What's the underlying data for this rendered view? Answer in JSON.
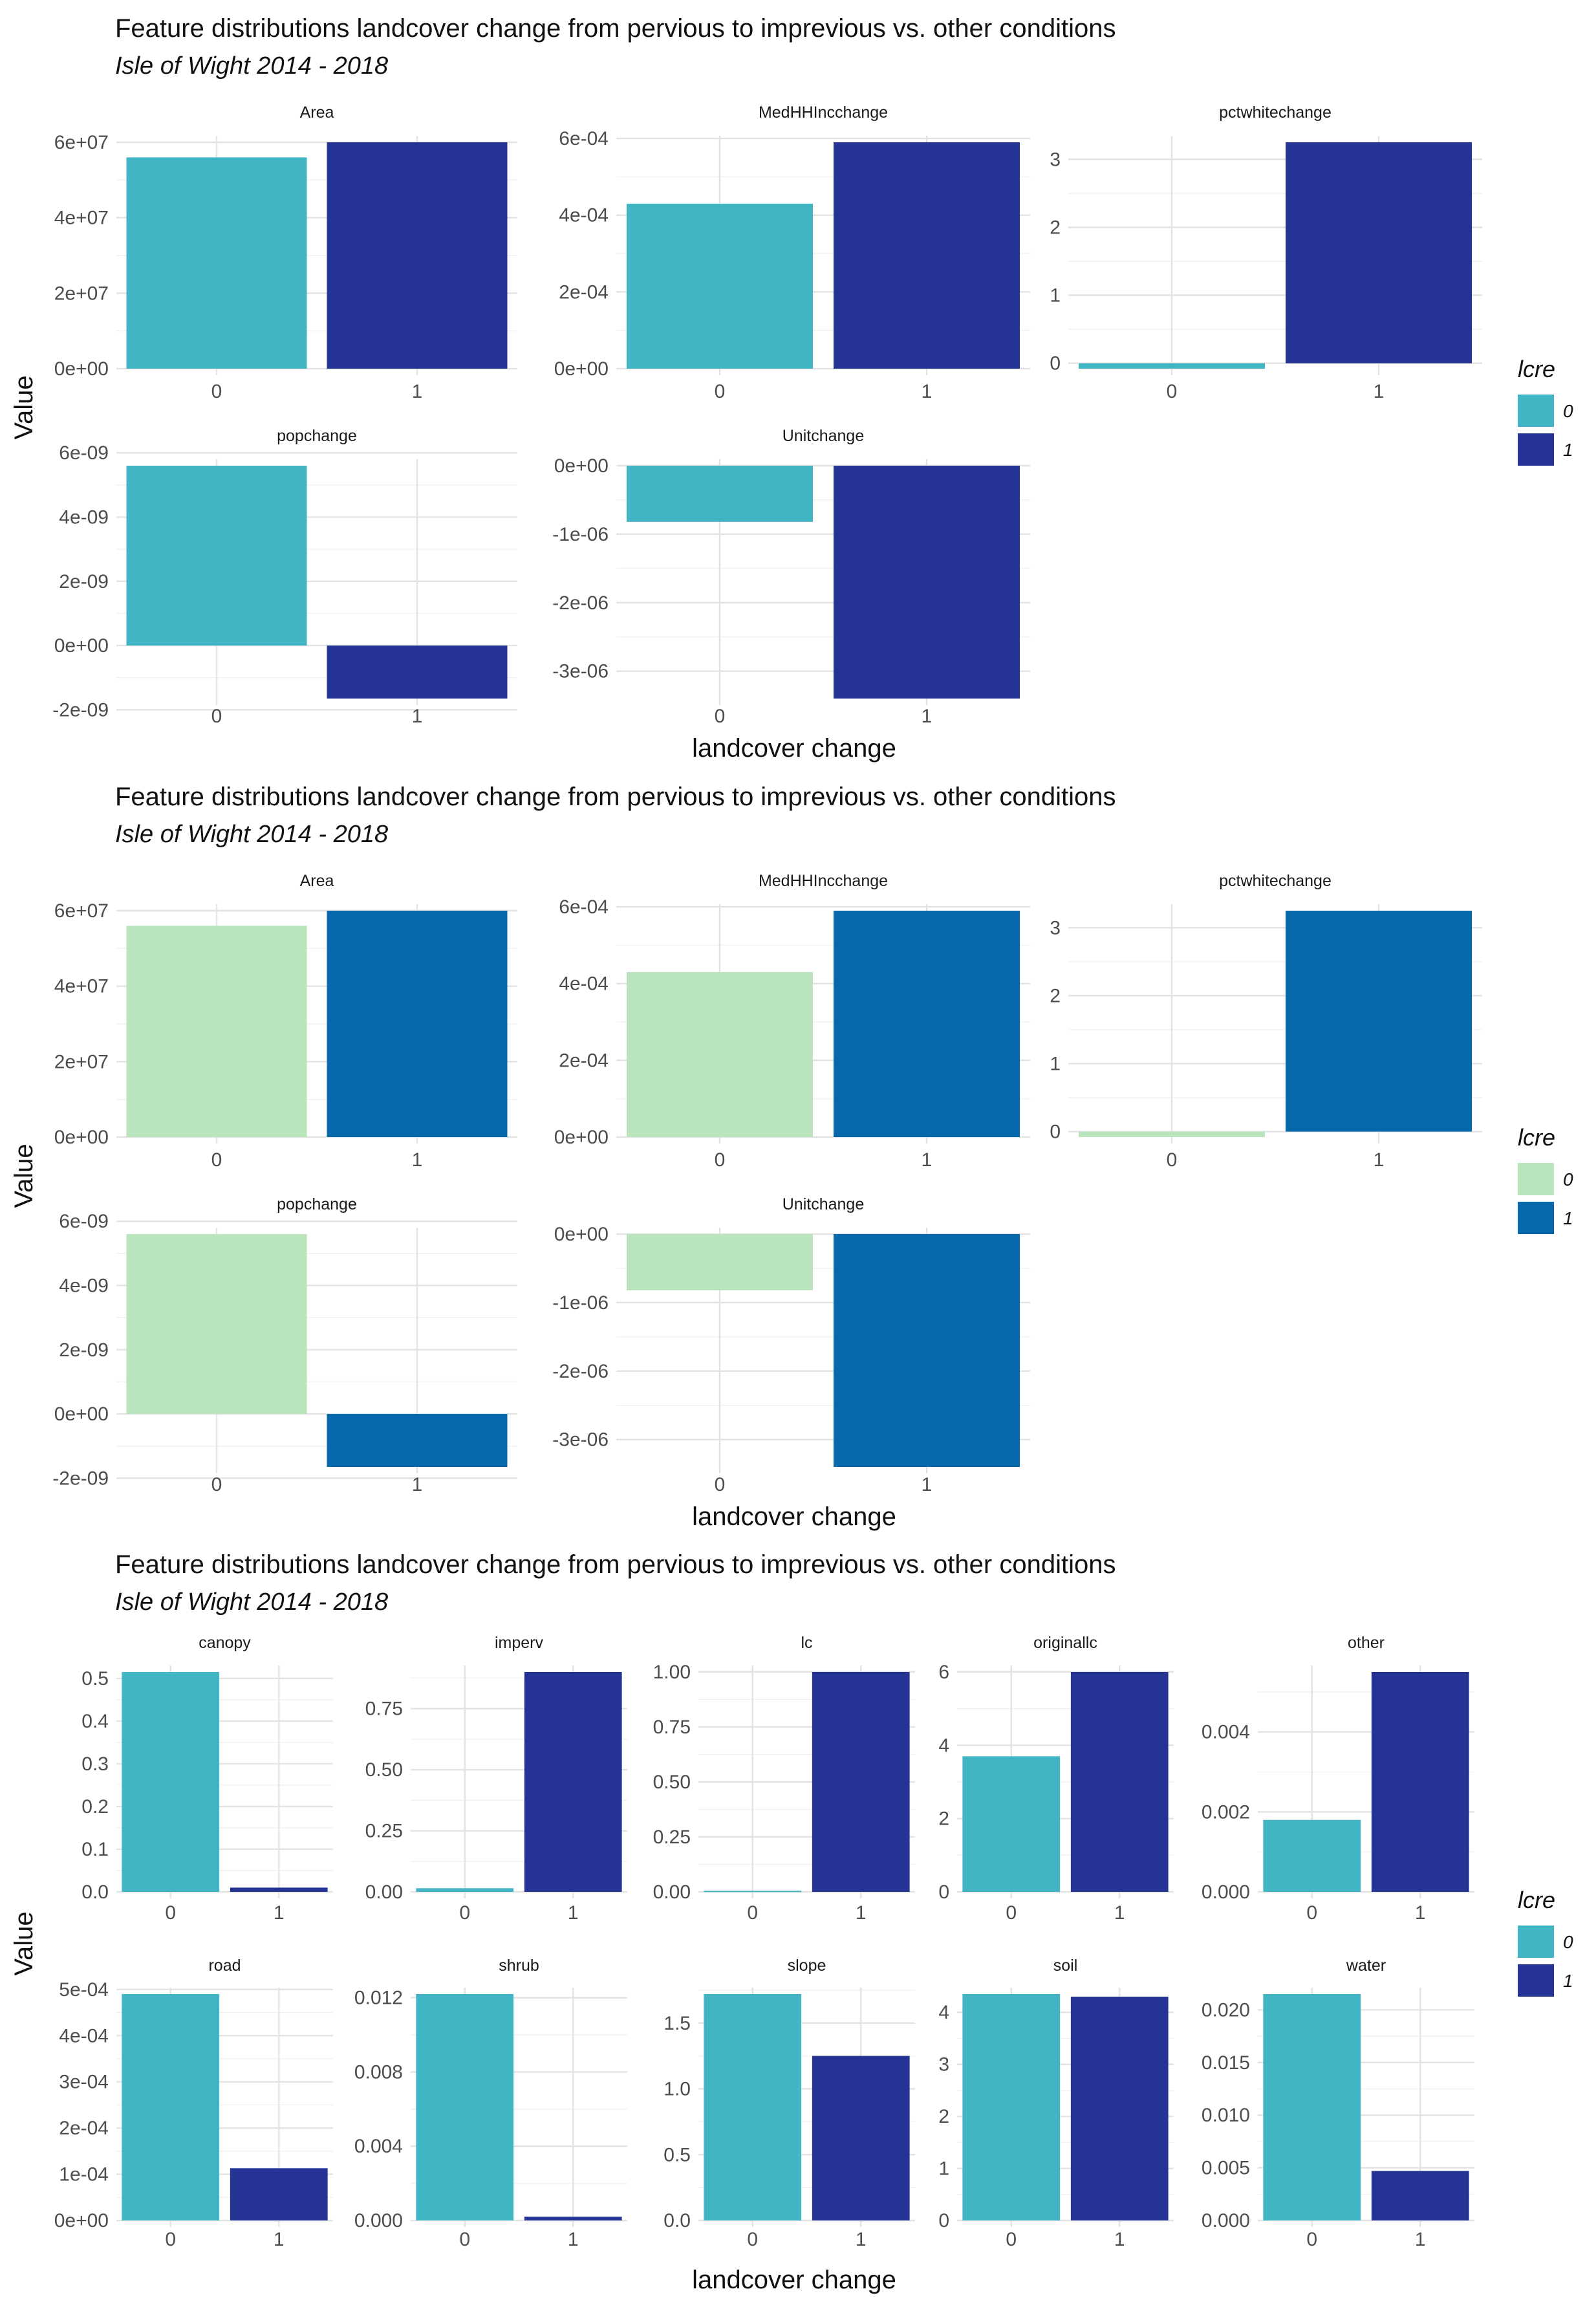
{
  "colors": {
    "palette_a": {
      "c0": "#42b5c4",
      "c1": "#253494"
    },
    "palette_b": {
      "c0": "#bae4bc",
      "c1": "#0868ac"
    },
    "palette_c": {
      "c0": "#42b5c4",
      "c1": "#253494"
    }
  },
  "chart_data": [
    {
      "type": "bar",
      "title": "Feature distributions landcover change from pervious to imprevious vs. other conditions",
      "subtitle": "Isle of Wight 2014 - 2018",
      "xlabel": "landcover change",
      "ylabel": "Value",
      "categories": [
        "0",
        "1"
      ],
      "legend": {
        "title": "lcre",
        "labels": [
          "0",
          "1"
        ],
        "position": "right"
      },
      "facets": [
        {
          "name": "Area",
          "values": [
            56000000,
            60000000
          ],
          "ylim": [
            0,
            60000000
          ],
          "ticks": [
            0,
            20000000,
            40000000,
            60000000
          ],
          "tick_labels": [
            "0e+00",
            "2e+07",
            "4e+07",
            "6e+07"
          ]
        },
        {
          "name": "MedHHIncchange",
          "values": [
            0.00043,
            0.00059
          ],
          "ylim": [
            0,
            0.00059
          ],
          "ticks": [
            0,
            0.0002,
            0.0004,
            0.0006
          ],
          "tick_labels": [
            "0e+00",
            "2e-04",
            "4e-04",
            "6e-04"
          ]
        },
        {
          "name": "pctwhitechange",
          "values": [
            -0.08,
            3.25
          ],
          "ylim": [
            -0.08,
            3.25
          ],
          "ticks": [
            0,
            1,
            2,
            3
          ],
          "tick_labels": [
            "0",
            "1",
            "2",
            "3"
          ]
        },
        {
          "name": "popchange",
          "values": [
            5.6e-09,
            -1.65e-09
          ],
          "ylim": [
            -1.65e-09,
            5.6e-09
          ],
          "ticks": [
            -2e-09,
            0,
            2e-09,
            4e-09,
            6e-09
          ],
          "tick_labels": [
            "-2e-09",
            "0e+00",
            "2e-09",
            "4e-09",
            "6e-09"
          ]
        },
        {
          "name": "Unitchange",
          "values": [
            -8.2e-07,
            -3.4e-06
          ],
          "ylim": [
            -3.4e-06,
            0
          ],
          "ticks": [
            -3e-06,
            -2e-06,
            -1e-06,
            0
          ],
          "tick_labels": [
            "-3e-06",
            "-2e-06",
            "-1e-06",
            "0e+00"
          ]
        }
      ]
    },
    {
      "type": "bar",
      "title": "Feature distributions landcover change from pervious to imprevious vs. other conditions",
      "subtitle": "Isle of Wight 2014 - 2018",
      "xlabel": "landcover change",
      "ylabel": "Value",
      "categories": [
        "0",
        "1"
      ],
      "legend": {
        "title": "lcre",
        "labels": [
          "0",
          "1"
        ],
        "position": "right"
      },
      "facets": [
        {
          "name": "Area",
          "values": [
            56000000,
            60000000
          ],
          "ylim": [
            0,
            60000000
          ],
          "ticks": [
            0,
            20000000,
            40000000,
            60000000
          ],
          "tick_labels": [
            "0e+00",
            "2e+07",
            "4e+07",
            "6e+07"
          ]
        },
        {
          "name": "MedHHIncchange",
          "values": [
            0.00043,
            0.00059
          ],
          "ylim": [
            0,
            0.00059
          ],
          "ticks": [
            0,
            0.0002,
            0.0004,
            0.0006
          ],
          "tick_labels": [
            "0e+00",
            "2e-04",
            "4e-04",
            "6e-04"
          ]
        },
        {
          "name": "pctwhitechange",
          "values": [
            -0.08,
            3.25
          ],
          "ylim": [
            -0.08,
            3.25
          ],
          "ticks": [
            0,
            1,
            2,
            3
          ],
          "tick_labels": [
            "0",
            "1",
            "2",
            "3"
          ]
        },
        {
          "name": "popchange",
          "values": [
            5.6e-09,
            -1.65e-09
          ],
          "ylim": [
            -1.65e-09,
            5.6e-09
          ],
          "ticks": [
            -2e-09,
            0,
            2e-09,
            4e-09,
            6e-09
          ],
          "tick_labels": [
            "-2e-09",
            "0e+00",
            "2e-09",
            "4e-09",
            "6e-09"
          ]
        },
        {
          "name": "Unitchange",
          "values": [
            -8.2e-07,
            -3.4e-06
          ],
          "ylim": [
            -3.4e-06,
            0
          ],
          "ticks": [
            -3e-06,
            -2e-06,
            -1e-06,
            0
          ],
          "tick_labels": [
            "-3e-06",
            "-2e-06",
            "-1e-06",
            "0e+00"
          ]
        }
      ]
    },
    {
      "type": "bar",
      "title": "Feature distributions landcover change from pervious to imprevious vs. other conditions",
      "subtitle": "Isle of Wight 2014 - 2018",
      "xlabel": "landcover change",
      "ylabel": "Value",
      "categories": [
        "0",
        "1"
      ],
      "legend": {
        "title": "lcre",
        "labels": [
          "0",
          "1"
        ],
        "position": "right"
      },
      "facets": [
        {
          "name": "canopy",
          "values": [
            0.515,
            0.01
          ],
          "ylim": [
            0,
            0.515
          ],
          "ticks": [
            0,
            0.1,
            0.2,
            0.3,
            0.4,
            0.5
          ],
          "tick_labels": [
            "0.0",
            "0.1",
            "0.2",
            "0.3",
            "0.4",
            "0.5"
          ]
        },
        {
          "name": "imperv",
          "values": [
            0.015,
            0.9
          ],
          "ylim": [
            0,
            0.9
          ],
          "ticks": [
            0,
            0.25,
            0.5,
            0.75
          ],
          "tick_labels": [
            "0.00",
            "0.25",
            "0.50",
            "0.75"
          ]
        },
        {
          "name": "lc",
          "values": [
            0.005,
            1.0
          ],
          "ylim": [
            0,
            1.0
          ],
          "ticks": [
            0,
            0.25,
            0.5,
            0.75,
            1.0
          ],
          "tick_labels": [
            "0.00",
            "0.25",
            "0.50",
            "0.75",
            "1.00"
          ]
        },
        {
          "name": "originallc",
          "values": [
            3.7,
            6.0
          ],
          "ylim": [
            0,
            6.0
          ],
          "ticks": [
            0,
            2,
            4,
            6
          ],
          "tick_labels": [
            "0",
            "2",
            "4",
            "6"
          ]
        },
        {
          "name": "other",
          "values": [
            0.0018,
            0.0055
          ],
          "ylim": [
            0,
            0.0055
          ],
          "ticks": [
            0,
            0.002,
            0.004
          ],
          "tick_labels": [
            "0.000",
            "0.002",
            "0.004"
          ]
        },
        {
          "name": "road",
          "values": [
            0.00049,
            0.000113
          ],
          "ylim": [
            0,
            0.00049
          ],
          "ticks": [
            0,
            0.0001,
            0.0002,
            0.0003,
            0.0004,
            0.0005
          ],
          "tick_labels": [
            "0e+00",
            "1e-04",
            "2e-04",
            "3e-04",
            "4e-04",
            "5e-04"
          ]
        },
        {
          "name": "shrub",
          "values": [
            0.0122,
            0.0002
          ],
          "ylim": [
            0,
            0.0122
          ],
          "ticks": [
            0,
            0.004,
            0.008,
            0.012
          ],
          "tick_labels": [
            "0.000",
            "0.004",
            "0.008",
            "0.012"
          ]
        },
        {
          "name": "slope",
          "values": [
            1.72,
            1.25
          ],
          "ylim": [
            0,
            1.72
          ],
          "ticks": [
            0,
            0.5,
            1.0,
            1.5
          ],
          "tick_labels": [
            "0.0",
            "0.5",
            "1.0",
            "1.5"
          ]
        },
        {
          "name": "soil",
          "values": [
            4.35,
            4.3
          ],
          "ylim": [
            0,
            4.35
          ],
          "ticks": [
            0,
            1,
            2,
            3,
            4
          ],
          "tick_labels": [
            "0",
            "1",
            "2",
            "3",
            "4"
          ]
        },
        {
          "name": "water",
          "values": [
            0.0215,
            0.0047
          ],
          "ylim": [
            0,
            0.0215
          ],
          "ticks": [
            0,
            0.005,
            0.01,
            0.015,
            0.02
          ],
          "tick_labels": [
            "0.000",
            "0.005",
            "0.010",
            "0.015",
            "0.020"
          ]
        }
      ]
    }
  ]
}
